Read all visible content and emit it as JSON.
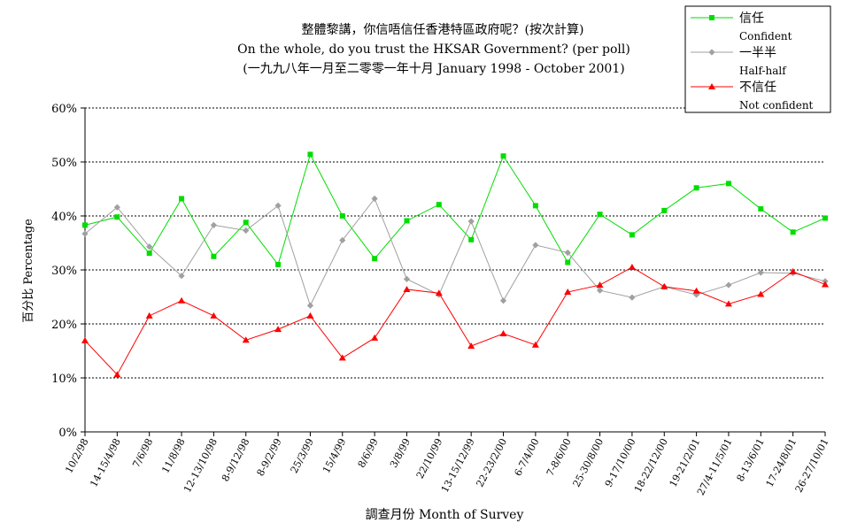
{
  "chart_data": {
    "type": "line",
    "title": "整體黎講，你信唔信任香港特區政府呢？(按次計算)",
    "subtitle": "On the whole, do you trust the HKSAR Government? (per poll)",
    "subtitle2": "(一九九八年一月至二零零一年十月 January 1998 - October 2001)",
    "xlabel": "調查月份 Month of Survey",
    "ylabel": "百分比 Percentage",
    "ylim": [
      0,
      60
    ],
    "yticks": [
      "0%",
      "10%",
      "20%",
      "30%",
      "40%",
      "50%",
      "60%"
    ],
    "grid": true,
    "legend_position": "top-right",
    "categories": [
      "10/2/98",
      "14-15/4/98",
      "7/6/98",
      "11/8/98",
      "12-13/10/98",
      "8-9/12/98",
      "8-9/2/99",
      "25/3/99",
      "15/4/99",
      "8/6/99",
      "3/8/99",
      "22/10/99",
      "13-15/12/99",
      "22-23/2/00",
      "6-7/4/00",
      "7-8/6/00",
      "25-30/8/00",
      "9-17/10/00",
      "18-22/12/00",
      "19-21/2/01",
      "27/4-11/5/01",
      "8-13/6/01",
      "17-24/8/01",
      "26-27/10/01"
    ],
    "series": [
      {
        "name": "信任",
        "name_en": "Confident",
        "color": "#00dd00",
        "marker": "square",
        "values": [
          38.3,
          39.8,
          33.1,
          43.2,
          32.5,
          38.8,
          31.0,
          51.4,
          40.0,
          32.1,
          39.1,
          42.1,
          35.6,
          51.1,
          41.9,
          31.4,
          40.3,
          36.5,
          41.0,
          45.2,
          46.0,
          41.3,
          37.0,
          39.6
        ]
      },
      {
        "name": "一半半",
        "name_en": "Half-half",
        "color": "#a0a0a0",
        "marker": "diamond",
        "values": [
          36.7,
          41.6,
          34.3,
          28.9,
          38.3,
          37.3,
          41.9,
          23.4,
          35.5,
          43.2,
          28.3,
          25.4,
          39.0,
          24.3,
          34.6,
          33.2,
          26.2,
          24.9,
          26.9,
          25.4,
          27.2,
          29.5,
          29.4,
          27.9
        ]
      },
      {
        "name": "不信任",
        "name_en": "Not confident",
        "color": "#ff0000",
        "marker": "triangle",
        "values": [
          16.9,
          10.6,
          21.5,
          24.3,
          21.5,
          17.0,
          19.0,
          21.5,
          13.7,
          17.4,
          26.4,
          25.7,
          15.9,
          18.2,
          16.1,
          25.9,
          27.2,
          30.5,
          26.9,
          26.1,
          23.7,
          25.5,
          29.7,
          27.3
        ]
      }
    ]
  }
}
